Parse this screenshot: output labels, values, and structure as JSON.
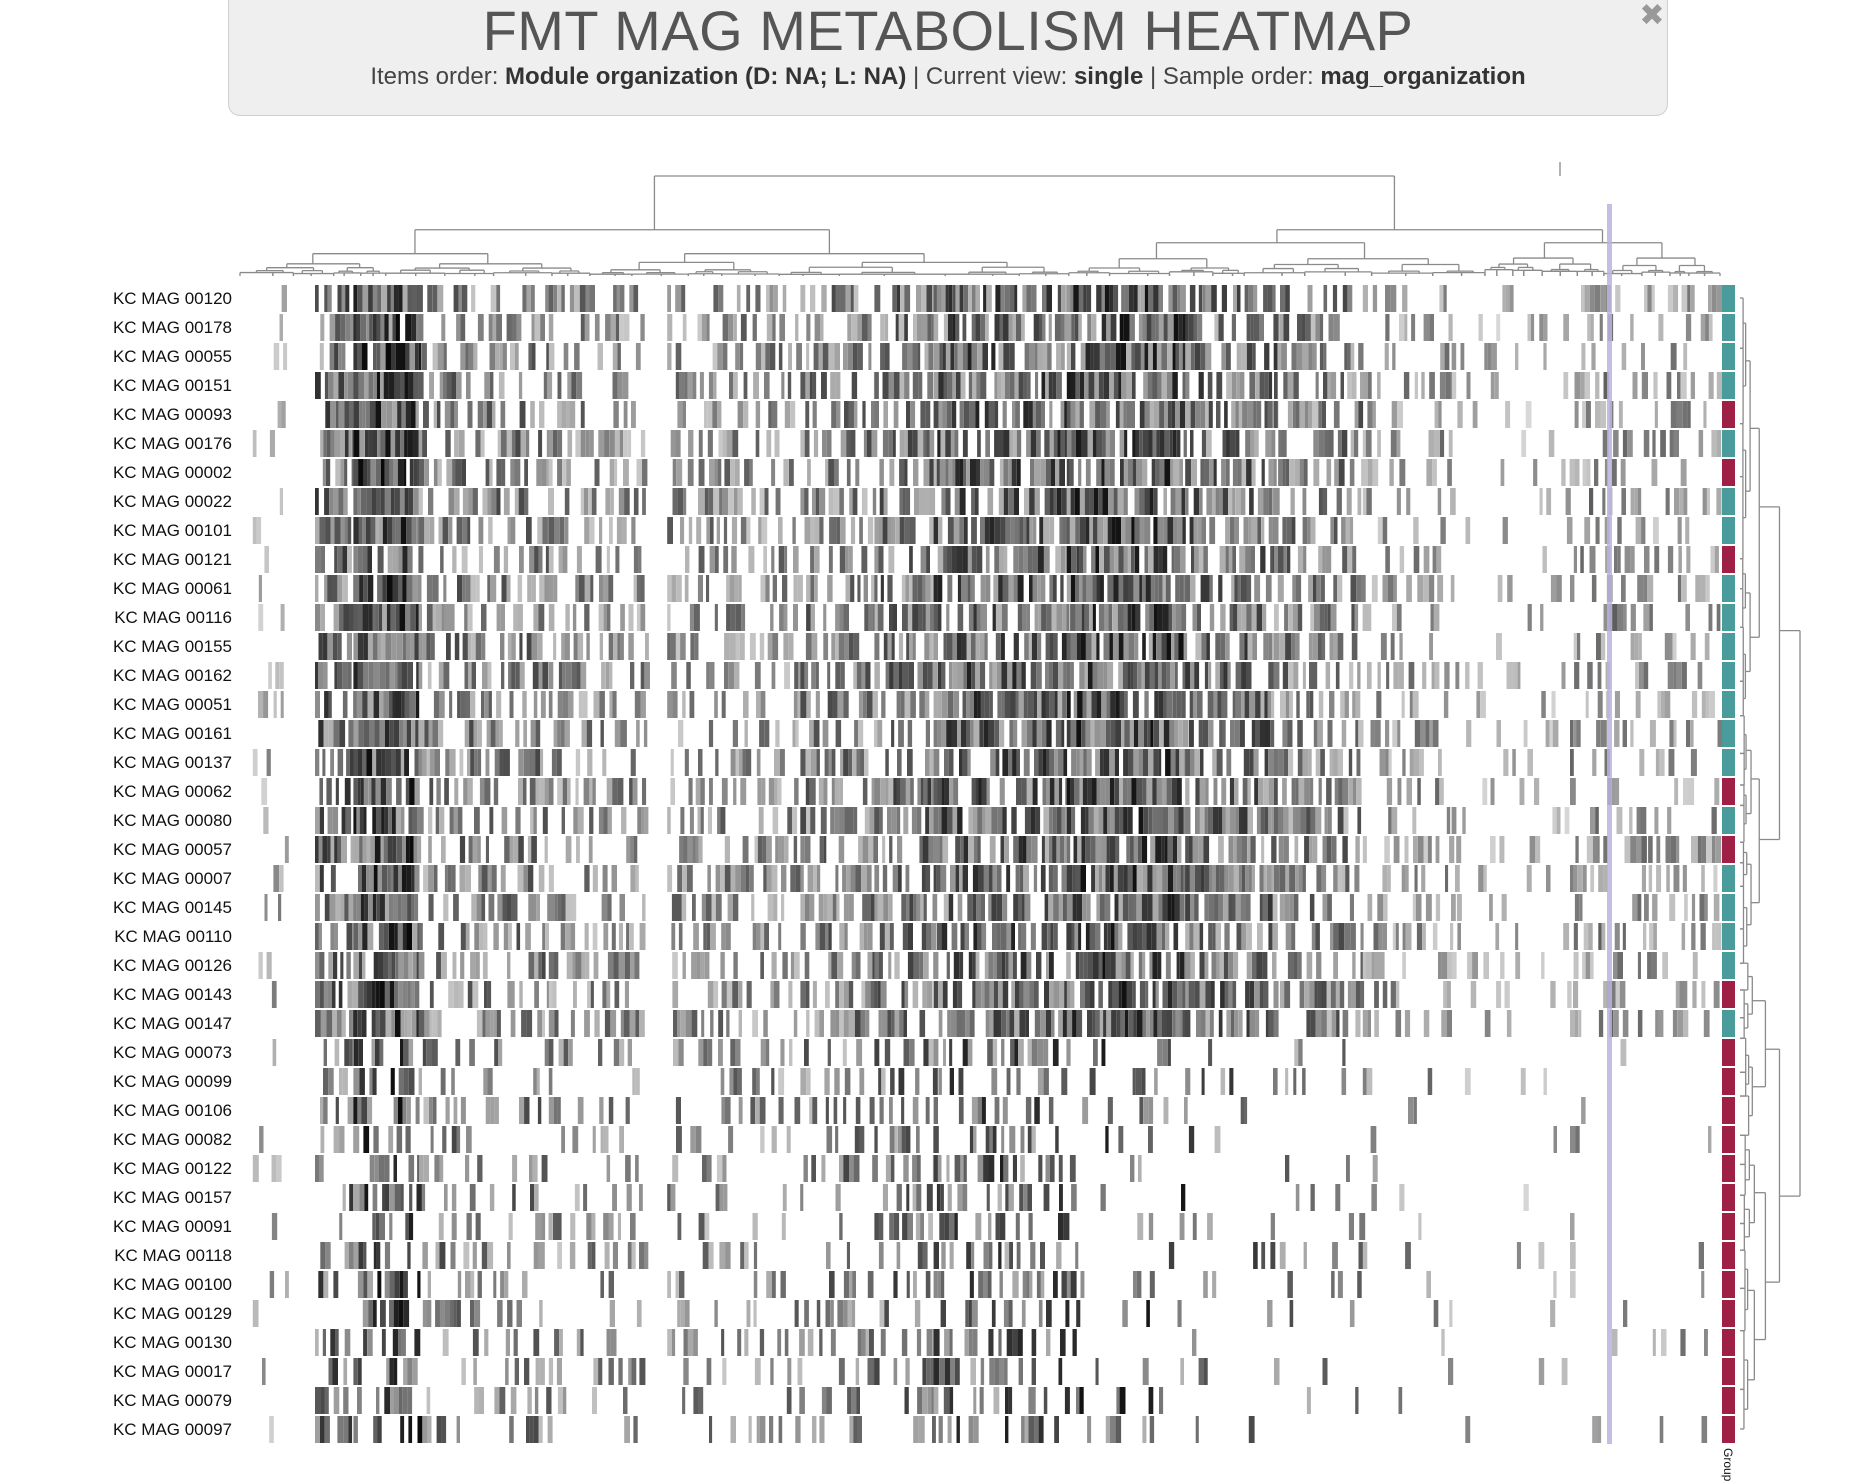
{
  "header": {
    "title": "FMT MAG METABOLISM HEATMAP",
    "items_order_label": "Items order:",
    "items_order_value": "Module organization (D: NA; L: NA)",
    "current_view_label": "Current view:",
    "current_view_value": "single",
    "sample_order_label": "Sample order:",
    "sample_order_value": "mag_organization",
    "close_icon": "close-icon"
  },
  "colors": {
    "group_teal": "#4a9c9c",
    "group_crimson": "#9e2045",
    "highlight": "#b9b3de",
    "dendrogram": "#8a8a8a"
  },
  "chart_data": {
    "type": "heatmap",
    "title": "FMT MAG METABOLISM HEATMAP",
    "group_layer_label": "Group",
    "rows": [
      {
        "name": "KC MAG 00120",
        "group": "teal"
      },
      {
        "name": "KC MAG 00178",
        "group": "teal"
      },
      {
        "name": "KC MAG 00055",
        "group": "teal"
      },
      {
        "name": "KC MAG 00151",
        "group": "teal"
      },
      {
        "name": "KC MAG 00093",
        "group": "crimson"
      },
      {
        "name": "KC MAG 00176",
        "group": "teal"
      },
      {
        "name": "KC MAG 00002",
        "group": "crimson"
      },
      {
        "name": "KC MAG 00022",
        "group": "teal"
      },
      {
        "name": "KC MAG 00101",
        "group": "teal"
      },
      {
        "name": "KC MAG 00121",
        "group": "crimson"
      },
      {
        "name": "KC MAG 00061",
        "group": "teal"
      },
      {
        "name": "KC MAG 00116",
        "group": "teal"
      },
      {
        "name": "KC MAG 00155",
        "group": "teal"
      },
      {
        "name": "KC MAG 00162",
        "group": "teal"
      },
      {
        "name": "KC MAG 00051",
        "group": "teal"
      },
      {
        "name": "KC MAG 00161",
        "group": "teal"
      },
      {
        "name": "KC MAG 00137",
        "group": "teal"
      },
      {
        "name": "KC MAG 00062",
        "group": "crimson"
      },
      {
        "name": "KC MAG 00080",
        "group": "teal"
      },
      {
        "name": "KC MAG 00057",
        "group": "crimson"
      },
      {
        "name": "KC MAG 00007",
        "group": "teal"
      },
      {
        "name": "KC MAG 00145",
        "group": "teal"
      },
      {
        "name": "KC MAG 00110",
        "group": "teal"
      },
      {
        "name": "KC MAG 00126",
        "group": "teal"
      },
      {
        "name": "KC MAG 00143",
        "group": "crimson"
      },
      {
        "name": "KC MAG 00147",
        "group": "teal"
      },
      {
        "name": "KC MAG 00073",
        "group": "crimson"
      },
      {
        "name": "KC MAG 00099",
        "group": "crimson"
      },
      {
        "name": "KC MAG 00106",
        "group": "crimson"
      },
      {
        "name": "KC MAG 00082",
        "group": "crimson"
      },
      {
        "name": "KC MAG 00122",
        "group": "crimson"
      },
      {
        "name": "KC MAG 00157",
        "group": "crimson"
      },
      {
        "name": "KC MAG 00091",
        "group": "crimson"
      },
      {
        "name": "KC MAG 00118",
        "group": "crimson"
      },
      {
        "name": "KC MAG 00100",
        "group": "crimson"
      },
      {
        "name": "KC MAG 00129",
        "group": "crimson"
      },
      {
        "name": "KC MAG 00130",
        "group": "crimson"
      },
      {
        "name": "KC MAG 00017",
        "group": "crimson"
      },
      {
        "name": "KC MAG 00079",
        "group": "crimson"
      },
      {
        "name": "KC MAG 00097",
        "group": "crimson"
      }
    ],
    "column_blocks": [
      {
        "range": [
          0.01,
          0.032
        ],
        "intensity": 0.2
      },
      {
        "range": [
          0.052,
          0.078
        ],
        "intensity": 0.7
      },
      {
        "range": [
          0.078,
          0.122
        ],
        "intensity": 0.95
      },
      {
        "range": [
          0.122,
          0.21
        ],
        "intensity": 0.55
      },
      {
        "range": [
          0.21,
          0.275
        ],
        "intensity": 0.45
      },
      {
        "range": [
          0.29,
          0.38
        ],
        "intensity": 0.45
      },
      {
        "range": [
          0.38,
          0.43
        ],
        "intensity": 0.55
      },
      {
        "range": [
          0.43,
          0.47
        ],
        "intensity": 0.65
      },
      {
        "range": [
          0.47,
          0.56
        ],
        "intensity": 0.8
      },
      {
        "range": [
          0.56,
          0.64
        ],
        "intensity": 0.9
      },
      {
        "range": [
          0.64,
          0.7
        ],
        "intensity": 0.7
      },
      {
        "range": [
          0.7,
          0.76
        ],
        "intensity": 0.55
      },
      {
        "range": [
          0.76,
          0.82
        ],
        "intensity": 0.35
      },
      {
        "range": [
          0.82,
          0.9
        ],
        "intensity": 0.15
      },
      {
        "range": [
          0.9,
          0.95
        ],
        "intensity": 0.4
      },
      {
        "range": [
          0.95,
          1.0
        ],
        "intensity": 0.3
      }
    ],
    "highlighted_column": 0.925,
    "legend": "none",
    "grid": false
  }
}
